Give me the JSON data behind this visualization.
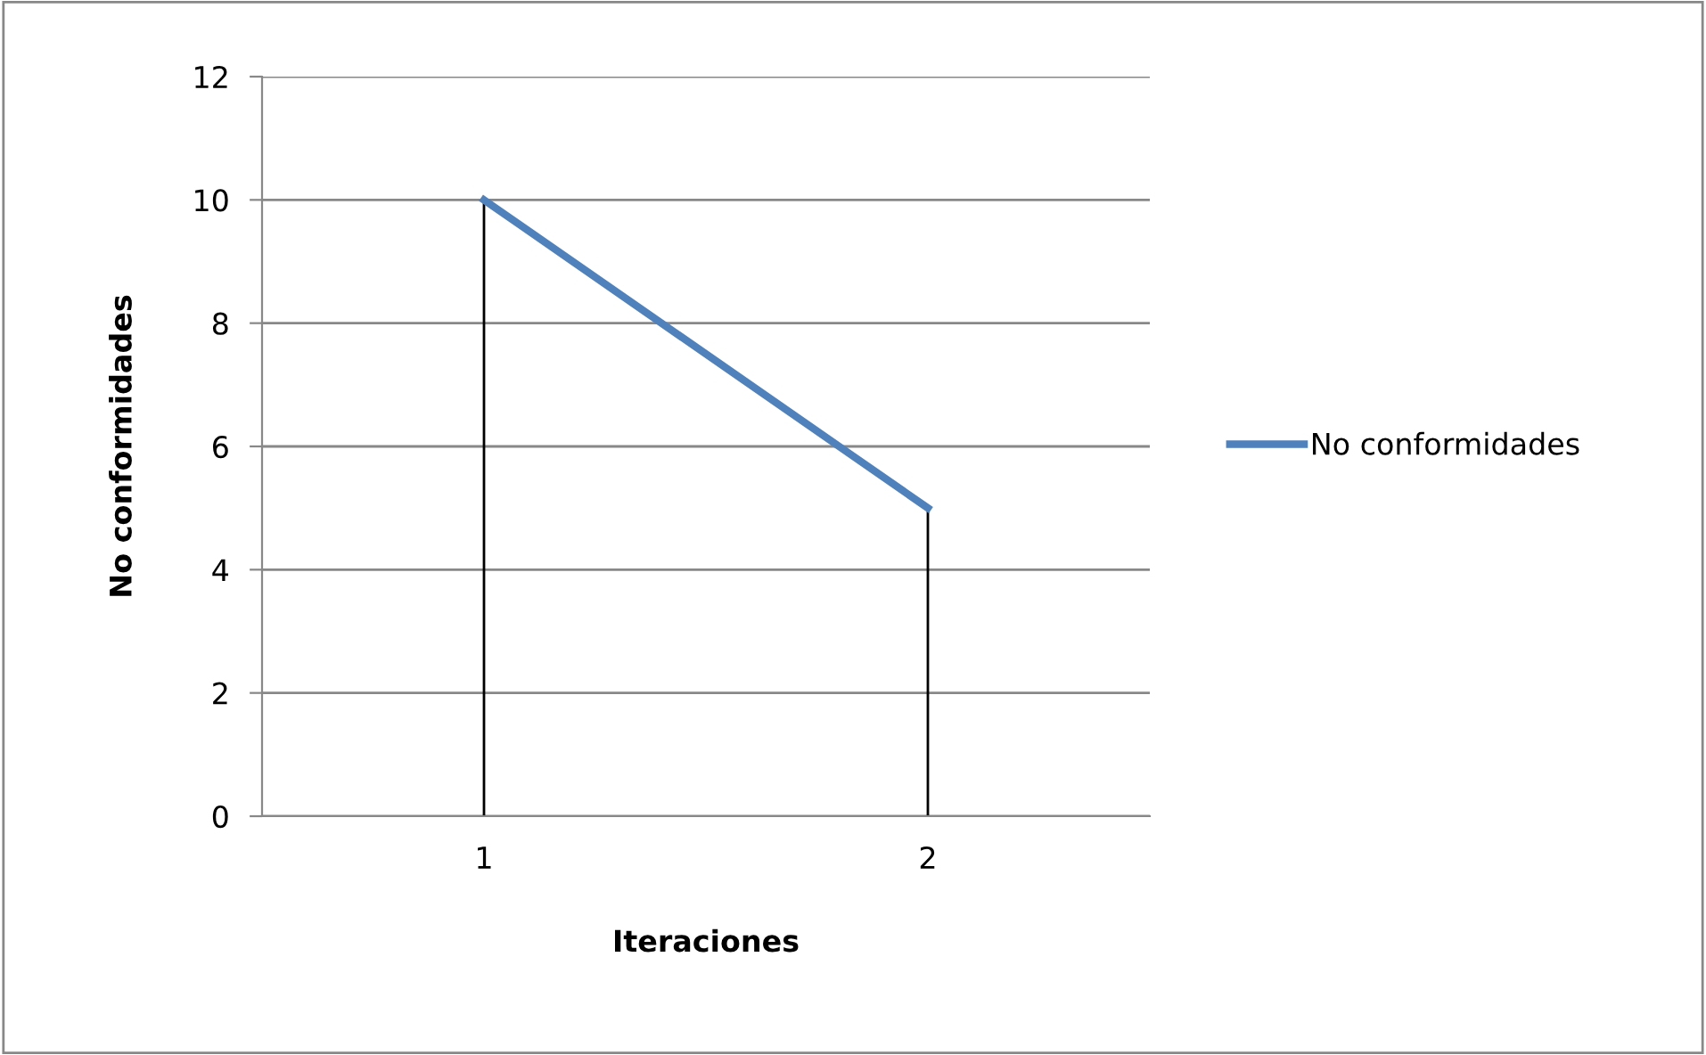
{
  "chart_data": {
    "type": "line",
    "xlabel": "Iteraciones",
    "ylabel": "No conformidades",
    "categories": [
      "1",
      "2"
    ],
    "series": [
      {
        "name": "No conformidades",
        "color": "#4f81bd",
        "values": [
          10,
          5
        ],
        "errors": [
          [
            0,
            10
          ],
          [
            0,
            5
          ]
        ]
      }
    ],
    "ylim": [
      0,
      12
    ],
    "yticks": [
      0,
      2,
      4,
      6,
      8,
      10,
      12
    ],
    "grid": "y",
    "legend": "right",
    "marker": "none",
    "line_style": "solid"
  }
}
